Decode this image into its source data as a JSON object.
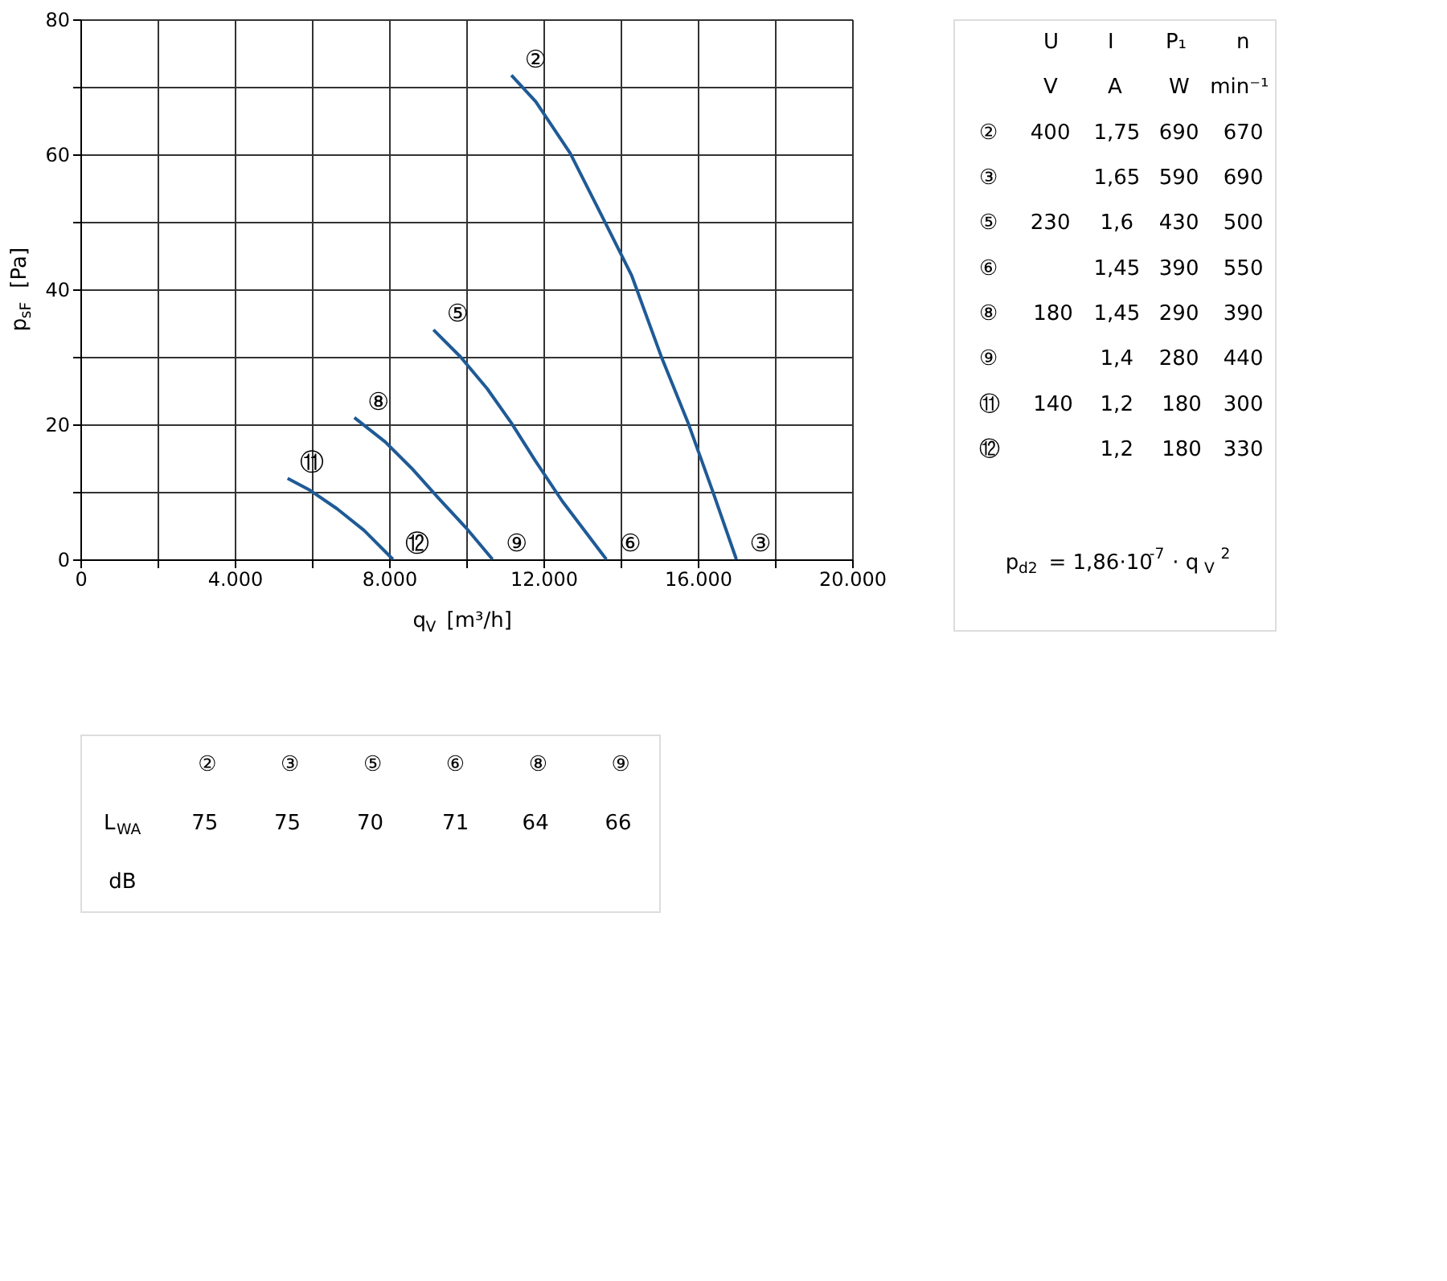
{
  "chart_data": [
    {
      "type": "line",
      "xlabel": "q$_{V}$ [m³/h]",
      "ylabel": "p$_{sF}$ [Pa]",
      "xlim": [
        0,
        20000
      ],
      "ylim": [
        0,
        80
      ],
      "grid": true,
      "marker": "none",
      "line_style": "solid",
      "xticks": [
        0,
        {
          "value": 2000,
          "label": null
        },
        {
          "value": 4000,
          "label": "4.000"
        },
        {
          "value": 6000,
          "label": null
        },
        {
          "value": 8000,
          "label": "8.000"
        },
        {
          "value": 10000,
          "label": null
        },
        {
          "value": 12000,
          "label": "12.000"
        },
        {
          "value": 14000,
          "label": null
        },
        {
          "value": 16000,
          "label": "16.000"
        },
        {
          "value": 18000,
          "label": null
        },
        {
          "value": 20000,
          "label": "20.000"
        }
      ],
      "yticks": [
        0,
        {
          "value": 10,
          "label": null
        },
        20,
        {
          "value": 30,
          "label": null
        },
        40,
        {
          "value": 50,
          "label": null
        },
        60,
        {
          "value": 70,
          "label": null
        },
        80
      ],
      "series": [
        {
          "color": "#1f5a96",
          "x": [
            11170,
            11800,
            12690,
            13600,
            14290,
            15050,
            15750,
            16380,
            17000
          ],
          "values": [
            71.7,
            67.8,
            60.2,
            49.9,
            42,
            30.1,
            20.2,
            10.2,
            0
          ]
        },
        {
          "color": "#1f5a96",
          "x": [
            9150,
            9850,
            10540,
            11170,
            11790,
            12490,
            13630
          ],
          "values": [
            34,
            30,
            25.3,
            20.2,
            14.6,
            8.6,
            0
          ]
        },
        {
          "color": "#1f5a96",
          "x": [
            7100,
            7900,
            8600,
            9290,
            9990,
            10680
          ],
          "values": [
            21,
            17.4,
            13.4,
            9,
            4.7,
            0
          ]
        },
        {
          "color": "#1f5a96",
          "x": [
            5370,
            5960,
            6650,
            7350,
            8100
          ],
          "values": [
            12,
            10.2,
            7.5,
            4.3,
            0
          ]
        }
      ],
      "annotations": [
        {
          "text": "②",
          "x": 11170,
          "y": 71.7
        },
        {
          "text": "③",
          "x": 17000,
          "y": 0
        },
        {
          "text": "⑤",
          "x": 9150,
          "y": 34
        },
        {
          "text": "⑥",
          "x": 13630,
          "y": 0
        },
        {
          "text": "⑧",
          "x": 7100,
          "y": 21
        },
        {
          "text": "⑨",
          "x": 10680,
          "y": 0
        },
        {
          "text": "⑪",
          "x": 5370,
          "y": 12
        },
        {
          "text": "⑫",
          "x": 8100,
          "y": 0
        }
      ]
    },
    {
      "type": "other",
      "cell_labels": [
        [
          null,
          "U",
          "I",
          "P₁",
          "n"
        ],
        [
          null,
          "V",
          "A",
          "W",
          "min⁻¹"
        ],
        [
          "②",
          "400",
          "1,75",
          "690",
          "670"
        ],
        [
          "③",
          null,
          "1,65",
          "590",
          "690"
        ],
        [
          "⑤",
          "230",
          "1,6",
          "430",
          "500"
        ],
        [
          "⑥",
          null,
          "1,45",
          "390",
          "550"
        ],
        [
          "⑧",
          "180",
          "1,45",
          "290",
          "390"
        ],
        [
          "⑨",
          null,
          "1,4",
          "280",
          "440"
        ],
        [
          "⑪",
          "140",
          "1,2",
          "180",
          "300"
        ],
        [
          "⑫",
          null,
          "1,2",
          "180",
          "330"
        ]
      ],
      "annotations": [
        "p$_{d2}$ = 1,86·10$^{-7}$ · q$_{V}$$^{2}$"
      ]
    },
    {
      "type": "other",
      "cell_labels": [
        [
          null,
          "②",
          "③",
          "⑤",
          "⑥",
          "⑧",
          "⑨"
        ],
        [
          "L$_{WA}$",
          "75",
          "75",
          "70",
          "71",
          "64",
          "66"
        ],
        [
          "dB",
          null,
          null,
          null,
          null,
          null,
          null
        ]
      ]
    }
  ]
}
